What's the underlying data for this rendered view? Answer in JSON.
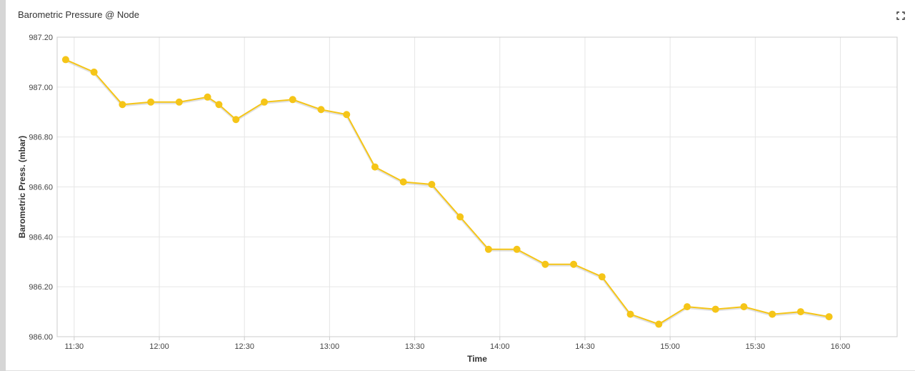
{
  "panel": {
    "title": "Barometric Pressure @ Node",
    "expand_icon": "expand-icon"
  },
  "colors": {
    "series": "#f5c518",
    "grid": "#e6e6e6",
    "axis": "#cccccc"
  },
  "chart_data": {
    "type": "line",
    "title": "Barometric Pressure @ Node",
    "xlabel": "Time",
    "ylabel": "Barometric Press. (mbar)",
    "ylim": [
      986.0,
      987.2
    ],
    "xlim": [
      "11:24",
      "16:20"
    ],
    "y_ticks": [
      "986.00",
      "986.20",
      "986.40",
      "986.60",
      "986.80",
      "987.00",
      "987.20"
    ],
    "x_ticks": [
      "11:30",
      "12:00",
      "12:30",
      "13:00",
      "13:30",
      "14:00",
      "14:30",
      "15:00",
      "15:30",
      "16:00"
    ],
    "grid": true,
    "series": [
      {
        "points": [
          [
            "11:27",
            987.11
          ],
          [
            "11:37",
            987.06
          ],
          [
            "11:47",
            986.93
          ],
          [
            "11:57",
            986.94
          ],
          [
            "12:07",
            986.94
          ],
          [
            "12:17",
            986.96
          ],
          [
            "12:21",
            986.93
          ],
          [
            "12:27",
            986.87
          ],
          [
            "12:37",
            986.94
          ],
          [
            "12:47",
            986.95
          ],
          [
            "12:57",
            986.91
          ],
          [
            "13:06",
            986.89
          ],
          [
            "13:16",
            986.68
          ],
          [
            "13:26",
            986.62
          ],
          [
            "13:36",
            986.61
          ],
          [
            "13:46",
            986.48
          ],
          [
            "13:56",
            986.35
          ],
          [
            "14:06",
            986.35
          ],
          [
            "14:16",
            986.29
          ],
          [
            "14:26",
            986.29
          ],
          [
            "14:36",
            986.24
          ],
          [
            "14:46",
            986.09
          ],
          [
            "14:56",
            986.05
          ],
          [
            "15:06",
            986.12
          ],
          [
            "15:16",
            986.11
          ],
          [
            "15:26",
            986.12
          ],
          [
            "15:36",
            986.09
          ],
          [
            "15:46",
            986.1
          ],
          [
            "15:56",
            986.08
          ]
        ]
      }
    ]
  }
}
